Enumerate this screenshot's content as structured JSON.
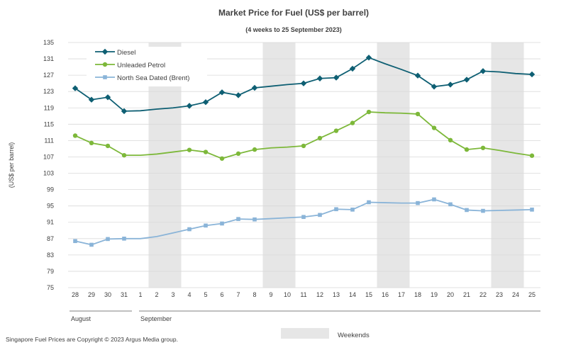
{
  "chart_data": {
    "type": "line",
    "title": "Market Price for Fuel (US$ per barrel)",
    "subtitle": "(4 weeks to 25 September 2023)",
    "ylabel": "(US$ per barrel)",
    "xlabel": "",
    "ylim": [
      75,
      135
    ],
    "yticks": [
      75,
      79,
      83,
      87,
      91,
      95,
      99,
      103,
      107,
      111,
      115,
      119,
      123,
      127,
      131,
      135
    ],
    "grid": true,
    "legend_position": "top-left",
    "days": [
      "28",
      "29",
      "30",
      "31",
      "1",
      "2",
      "3",
      "4",
      "5",
      "6",
      "7",
      "8",
      "9",
      "10",
      "11",
      "12",
      "13",
      "14",
      "15",
      "16",
      "17",
      "18",
      "19",
      "20",
      "21",
      "22",
      "23",
      "24",
      "25"
    ],
    "months": [
      {
        "label": "August",
        "start": 0,
        "end": 3
      },
      {
        "label": "September",
        "start": 4,
        "end": 28
      }
    ],
    "weekends": [
      [
        4.5,
        6.5
      ],
      [
        11.5,
        13.5
      ],
      [
        18.5,
        20.5
      ],
      [
        25.5,
        27.5
      ]
    ],
    "weekend_legend": "Weekends",
    "series": [
      {
        "name": "Diesel",
        "color": "#0e5f73",
        "marker": "diamond",
        "points": [
          [
            0,
            123.8
          ],
          [
            1,
            121.0
          ],
          [
            2,
            121.6
          ],
          [
            3,
            118.2
          ],
          [
            7,
            119.5
          ],
          [
            8,
            120.4
          ],
          [
            9,
            122.8
          ],
          [
            10,
            122.1
          ],
          [
            11,
            123.9
          ],
          [
            14,
            125.0
          ],
          [
            15,
            126.2
          ],
          [
            16,
            126.4
          ],
          [
            17,
            128.6
          ],
          [
            18,
            131.3
          ],
          [
            21,
            126.9
          ],
          [
            22,
            124.2
          ],
          [
            23,
            124.7
          ],
          [
            24,
            125.9
          ],
          [
            25,
            128.0
          ],
          [
            28,
            127.2
          ]
        ],
        "gap_points": [
          [
            4,
            118.3
          ],
          [
            5,
            118.7
          ],
          [
            6,
            119.0
          ],
          [
            12,
            124.3
          ],
          [
            13,
            124.7
          ],
          [
            19,
            129.8
          ],
          [
            20,
            128.4
          ],
          [
            26,
            127.8
          ],
          [
            27,
            127.4
          ]
        ]
      },
      {
        "name": "Unleaded Petrol",
        "color": "#7db83a",
        "marker": "circle",
        "points": [
          [
            0,
            112.2
          ],
          [
            1,
            110.4
          ],
          [
            2,
            109.7
          ],
          [
            3,
            107.4
          ],
          [
            7,
            108.7
          ],
          [
            8,
            108.2
          ],
          [
            9,
            106.6
          ],
          [
            10,
            107.8
          ],
          [
            11,
            108.8
          ],
          [
            14,
            109.7
          ],
          [
            15,
            111.6
          ],
          [
            16,
            113.4
          ],
          [
            17,
            115.3
          ],
          [
            18,
            118.0
          ],
          [
            21,
            117.5
          ],
          [
            22,
            114.1
          ],
          [
            23,
            111.1
          ],
          [
            24,
            108.8
          ],
          [
            25,
            109.2
          ],
          [
            28,
            107.3
          ]
        ],
        "gap_points": [
          [
            4,
            107.4
          ],
          [
            5,
            107.7
          ],
          [
            6,
            108.2
          ],
          [
            12,
            109.2
          ],
          [
            13,
            109.4
          ],
          [
            19,
            117.8
          ],
          [
            20,
            117.7
          ],
          [
            26,
            108.6
          ],
          [
            27,
            107.9
          ]
        ]
      },
      {
        "name": "North Sea Dated (Brent)",
        "color": "#8ab4d8",
        "marker": "square",
        "points": [
          [
            0,
            86.4
          ],
          [
            1,
            85.5
          ],
          [
            2,
            86.9
          ],
          [
            3,
            87.0
          ],
          [
            7,
            89.3
          ],
          [
            8,
            90.2
          ],
          [
            9,
            90.7
          ],
          [
            10,
            91.8
          ],
          [
            11,
            91.7
          ],
          [
            14,
            92.3
          ],
          [
            15,
            92.8
          ],
          [
            16,
            94.2
          ],
          [
            17,
            94.1
          ],
          [
            18,
            95.9
          ],
          [
            21,
            95.7
          ],
          [
            22,
            96.6
          ],
          [
            23,
            95.4
          ],
          [
            24,
            94.0
          ],
          [
            25,
            93.8
          ],
          [
            28,
            94.1
          ]
        ],
        "gap_points": [
          [
            4,
            87.0
          ],
          [
            5,
            87.5
          ],
          [
            6,
            88.4
          ],
          [
            12,
            91.9
          ],
          [
            13,
            92.1
          ],
          [
            19,
            95.8
          ],
          [
            20,
            95.7
          ],
          [
            26,
            93.9
          ],
          [
            27,
            94.0
          ]
        ]
      }
    ]
  },
  "footer": {
    "copyright": "Singapore Fuel Prices are Copyright © 2023 Argus Media group."
  }
}
